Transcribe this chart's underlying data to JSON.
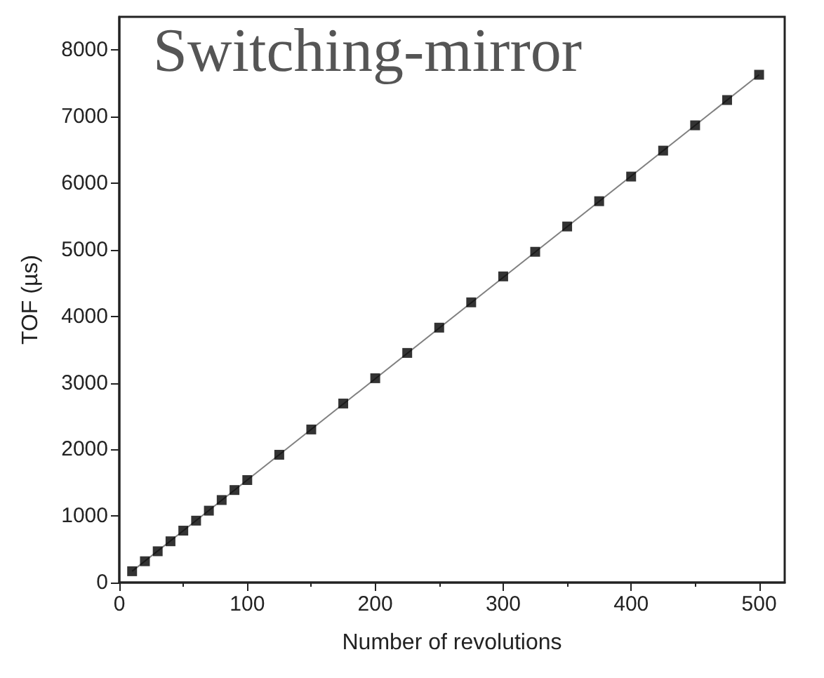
{
  "chart_data": {
    "type": "scatter",
    "xlabel": "Number of revolutions",
    "ylabel": "TOF (µs)",
    "annotations": [
      "Switching-mirror"
    ],
    "x": [
      10,
      20,
      30,
      40,
      50,
      60,
      70,
      80,
      90,
      100,
      125,
      150,
      175,
      200,
      225,
      250,
      275,
      300,
      325,
      350,
      375,
      400,
      425,
      450,
      475,
      500
    ],
    "series": [
      {
        "color": "#000000",
        "marker": "square",
        "values": [
          170,
          320,
          470,
          620,
          780,
          930,
          1080,
          1240,
          1390,
          1540,
          1920,
          2300,
          2690,
          3070,
          3450,
          3830,
          4210,
          4600,
          4970,
          5350,
          5730,
          6100,
          6490,
          6870,
          7250,
          7630
        ]
      },
      {
        "type": "line",
        "color": "#808080",
        "marker": "none",
        "x": [
          10,
          500
        ],
        "values": [
          170,
          7630
        ]
      }
    ],
    "xlim": [
      0,
      520
    ],
    "xticks": [
      0,
      100,
      200,
      300,
      400,
      500
    ],
    "ylim": [
      0,
      8500
    ],
    "yticks": [
      0,
      1000,
      2000,
      3000,
      4000,
      5000,
      6000,
      7000,
      8000
    ],
    "grid": false
  }
}
